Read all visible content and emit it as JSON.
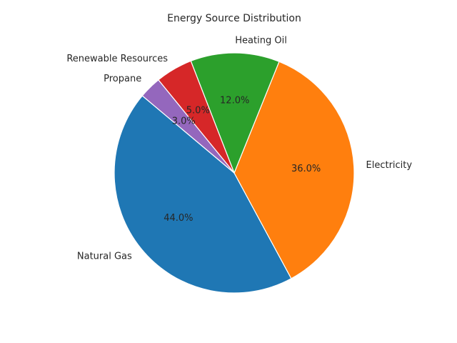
{
  "chart_data": {
    "type": "pie",
    "title": "Energy Source Distribution",
    "start_angle_deg": 140,
    "direction": "counterclockwise",
    "slices": [
      {
        "label": "Natural Gas",
        "value": 44.0,
        "pct_text": "44.0%",
        "color": "#1f77b4"
      },
      {
        "label": "Electricity",
        "value": 36.0,
        "pct_text": "36.0%",
        "color": "#ff7f0e"
      },
      {
        "label": "Heating Oil",
        "value": 12.0,
        "pct_text": "12.0%",
        "color": "#2ca02c"
      },
      {
        "label": "Renewable Resources",
        "value": 5.0,
        "pct_text": "5.0%",
        "color": "#d62728"
      },
      {
        "label": "Propane",
        "value": 3.0,
        "pct_text": "3.0%",
        "color": "#9467bd"
      }
    ]
  }
}
